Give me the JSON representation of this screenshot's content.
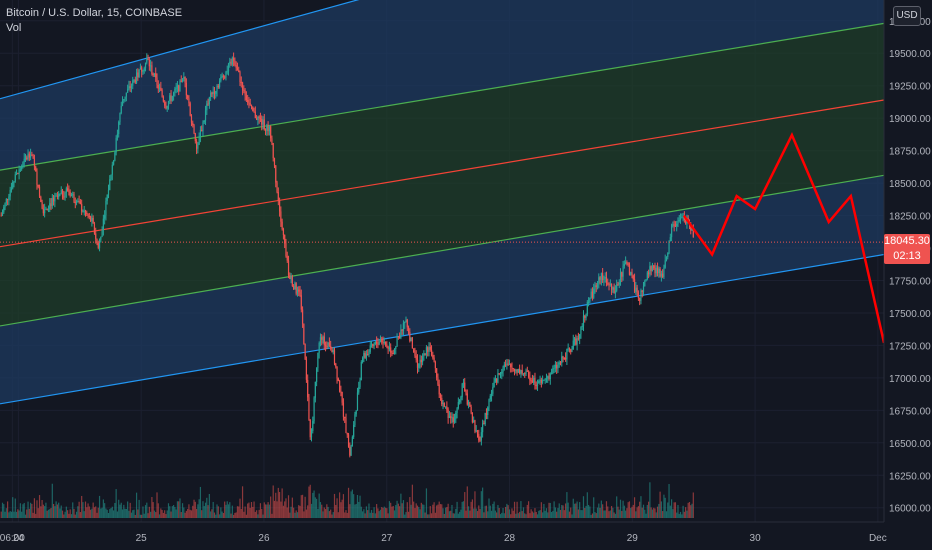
{
  "header": {
    "symbol_title": "Bitcoin / U.S. Dollar, 15, COINBASE",
    "volume_label": "Vol",
    "currency_button": "USD"
  },
  "last_price": {
    "value": 18045.3,
    "label": "18045.30",
    "countdown": "02:13",
    "color": "#ef5350"
  },
  "colors": {
    "background": "#131722",
    "up_candle": "#26a69a",
    "down_candle": "#ef5350",
    "channel_blue_line": "#2196f3",
    "channel_green_line": "#4caf50",
    "channel_mid_line": "#f44336",
    "channel_outer_fill": "#1e3a5f",
    "channel_inner_fill": "#1f3d2a",
    "projection": "#ff0000",
    "axis_text": "#b2b5be"
  },
  "chart_data": {
    "type": "candlestick",
    "title": "Bitcoin / U.S. Dollar, 15, COINBASE",
    "x_axis": {
      "type": "date",
      "range": [
        23.85,
        31.05
      ],
      "ticks": [
        {
          "label": "06:00",
          "x": 23.95
        },
        {
          "label": "24",
          "x": 24.0
        },
        {
          "label": "25",
          "x": 25.0
        },
        {
          "label": "26",
          "x": 26.0
        },
        {
          "label": "27",
          "x": 27.0
        },
        {
          "label": "28",
          "x": 28.0
        },
        {
          "label": "29",
          "x": 29.0
        },
        {
          "label": "30",
          "x": 30.0
        },
        {
          "label": "Dec",
          "x": 31.0
        }
      ]
    },
    "y_axis": {
      "range": [
        15890,
        19910
      ],
      "ticks": [
        "16000.00",
        "16250.00",
        "16500.00",
        "16750.00",
        "17000.00",
        "17250.00",
        "17500.00",
        "17750.00",
        "18000.00",
        "18250.00",
        "18500.00",
        "18750.00",
        "19000.00",
        "19250.00",
        "19500.00",
        "19750.00"
      ],
      "position": "right"
    },
    "price_path": [
      {
        "x": 23.86,
        "y": 18250
      },
      {
        "x": 23.95,
        "y": 18500
      },
      {
        "x": 24.1,
        "y": 18750
      },
      {
        "x": 24.2,
        "y": 18300
      },
      {
        "x": 24.4,
        "y": 18450
      },
      {
        "x": 24.6,
        "y": 18200
      },
      {
        "x": 24.65,
        "y": 18000
      },
      {
        "x": 24.75,
        "y": 18550
      },
      {
        "x": 24.85,
        "y": 19150
      },
      {
        "x": 25.05,
        "y": 19450
      },
      {
        "x": 25.2,
        "y": 19100
      },
      {
        "x": 25.35,
        "y": 19300
      },
      {
        "x": 25.45,
        "y": 18750
      },
      {
        "x": 25.55,
        "y": 19150
      },
      {
        "x": 25.75,
        "y": 19450
      },
      {
        "x": 25.9,
        "y": 19050
      },
      {
        "x": 26.05,
        "y": 18900
      },
      {
        "x": 26.1,
        "y": 18500
      },
      {
        "x": 26.2,
        "y": 17800
      },
      {
        "x": 26.3,
        "y": 17600
      },
      {
        "x": 26.38,
        "y": 16500
      },
      {
        "x": 26.45,
        "y": 17300
      },
      {
        "x": 26.55,
        "y": 17250
      },
      {
        "x": 26.62,
        "y": 16900
      },
      {
        "x": 26.7,
        "y": 16400
      },
      {
        "x": 26.8,
        "y": 17150
      },
      {
        "x": 26.95,
        "y": 17300
      },
      {
        "x": 27.05,
        "y": 17200
      },
      {
        "x": 27.15,
        "y": 17450
      },
      {
        "x": 27.25,
        "y": 17100
      },
      {
        "x": 27.35,
        "y": 17250
      },
      {
        "x": 27.45,
        "y": 16800
      },
      {
        "x": 27.55,
        "y": 16650
      },
      {
        "x": 27.62,
        "y": 16950
      },
      {
        "x": 27.75,
        "y": 16500
      },
      {
        "x": 27.85,
        "y": 16900
      },
      {
        "x": 27.95,
        "y": 17100
      },
      {
        "x": 28.1,
        "y": 17050
      },
      {
        "x": 28.25,
        "y": 16950
      },
      {
        "x": 28.4,
        "y": 17100
      },
      {
        "x": 28.55,
        "y": 17300
      },
      {
        "x": 28.65,
        "y": 17600
      },
      {
        "x": 28.75,
        "y": 17800
      },
      {
        "x": 28.85,
        "y": 17650
      },
      {
        "x": 28.95,
        "y": 17900
      },
      {
        "x": 29.05,
        "y": 17600
      },
      {
        "x": 29.15,
        "y": 17850
      },
      {
        "x": 29.25,
        "y": 17800
      },
      {
        "x": 29.32,
        "y": 18150
      },
      {
        "x": 29.42,
        "y": 18250
      },
      {
        "x": 29.5,
        "y": 18100
      }
    ],
    "projection": [
      {
        "x": 29.42,
        "y": 18250
      },
      {
        "x": 29.65,
        "y": 17950
      },
      {
        "x": 29.85,
        "y": 18400
      },
      {
        "x": 30.0,
        "y": 18300
      },
      {
        "x": 30.3,
        "y": 18870
      },
      {
        "x": 30.6,
        "y": 18200
      },
      {
        "x": 30.78,
        "y": 18400
      },
      {
        "x": 31.05,
        "y": 17270
      }
    ],
    "channel": {
      "type": "regression-channel",
      "lines": [
        {
          "name": "upper",
          "start": {
            "x": 23.85,
            "y": 19150
          },
          "end": {
            "x": 29.4,
            "y": 20600
          },
          "color": "#2196f3"
        },
        {
          "name": "upper-inner",
          "start": {
            "x": 23.85,
            "y": 18600
          },
          "end": {
            "x": 31.05,
            "y": 19730
          },
          "color": "#4caf50"
        },
        {
          "name": "median",
          "start": {
            "x": 23.85,
            "y": 18010
          },
          "end": {
            "x": 31.05,
            "y": 19140
          },
          "color": "#f44336"
        },
        {
          "name": "lower-inner",
          "start": {
            "x": 23.85,
            "y": 17400
          },
          "end": {
            "x": 31.05,
            "y": 18560
          },
          "color": "#4caf50"
        },
        {
          "name": "lower",
          "start": {
            "x": 23.85,
            "y": 16800
          },
          "end": {
            "x": 31.05,
            "y": 17950
          },
          "color": "#2196f3"
        }
      ]
    },
    "volume_series": "Vol",
    "grid": true,
    "legend": "top-left"
  }
}
